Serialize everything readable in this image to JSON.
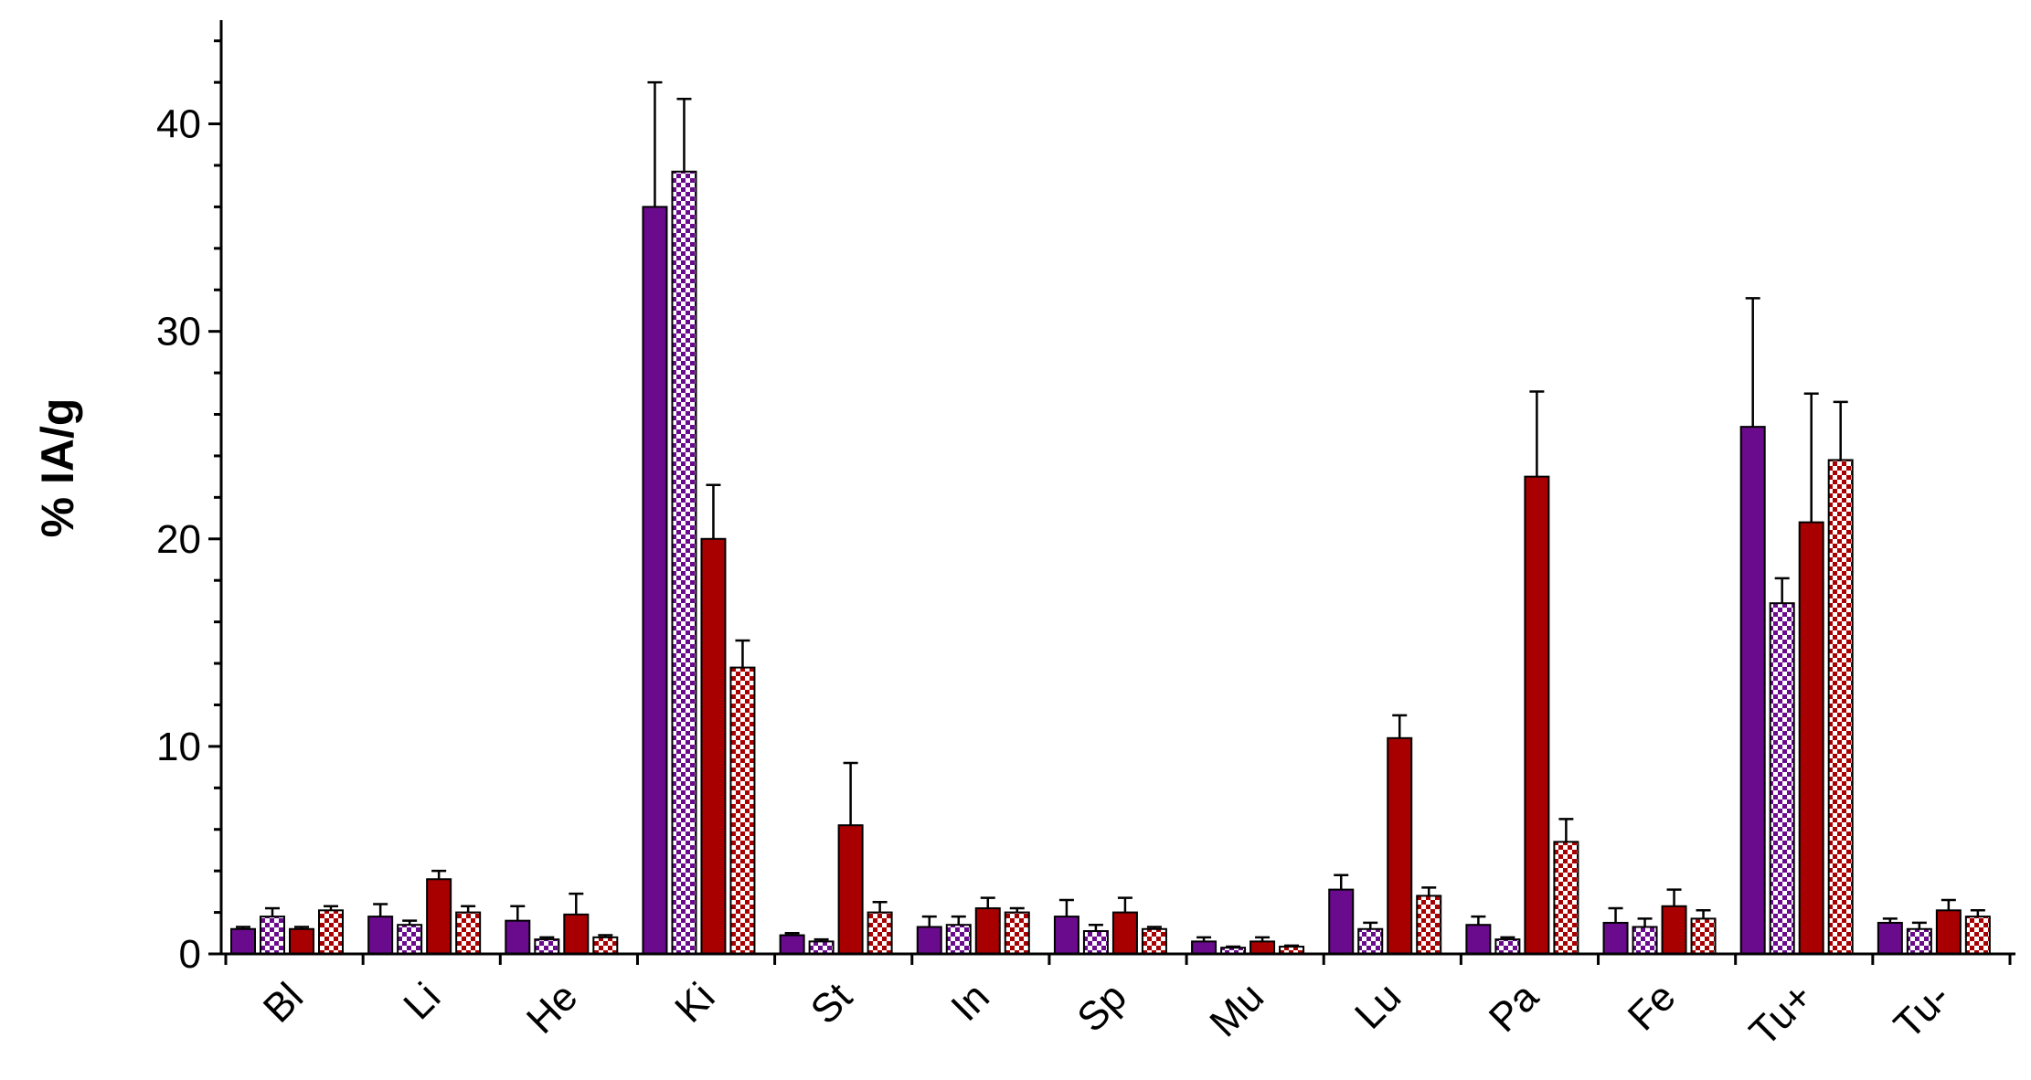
{
  "chart_data": {
    "type": "bar",
    "title": "",
    "xlabel": "",
    "ylabel": "% IA/g",
    "ylim": [
      0,
      45
    ],
    "yticks": [
      0,
      10,
      20,
      30,
      40
    ],
    "grid": false,
    "legend": "none",
    "categories": [
      "Bl",
      "Li",
      "He",
      "Ki",
      "St",
      "In",
      "Sp",
      "Mu",
      "Lu",
      "Pa",
      "Fe",
      "Tu+",
      "Tu-"
    ],
    "series": [
      {
        "color": "#6a0a8c",
        "pattern": "solid",
        "values": [
          1.2,
          1.8,
          1.6,
          36.0,
          0.9,
          1.3,
          1.8,
          0.6,
          3.1,
          1.4,
          1.5,
          25.4,
          1.5
        ],
        "errors": [
          0.1,
          0.6,
          0.7,
          6.0,
          0.1,
          0.5,
          0.8,
          0.2,
          0.7,
          0.4,
          0.7,
          6.2,
          0.2
        ]
      },
      {
        "color": "#6a0a8c",
        "pattern": "checkered",
        "values": [
          1.8,
          1.4,
          0.7,
          37.7,
          0.6,
          1.4,
          1.1,
          0.3,
          1.2,
          0.7,
          1.3,
          16.9,
          1.2
        ],
        "errors": [
          0.4,
          0.2,
          0.1,
          3.5,
          0.1,
          0.4,
          0.3,
          0.05,
          0.3,
          0.1,
          0.4,
          1.2,
          0.3
        ]
      },
      {
        "color": "#a80000",
        "pattern": "solid",
        "values": [
          1.2,
          3.6,
          1.9,
          20.0,
          6.2,
          2.2,
          2.0,
          0.6,
          10.4,
          23.0,
          2.3,
          20.8,
          2.1
        ],
        "errors": [
          0.1,
          0.4,
          1.0,
          2.6,
          3.0,
          0.5,
          0.7,
          0.2,
          1.1,
          4.1,
          0.8,
          6.2,
          0.5
        ]
      },
      {
        "color": "#a80000",
        "pattern": "checkered",
        "values": [
          2.1,
          2.0,
          0.8,
          13.8,
          2.0,
          2.0,
          1.2,
          0.35,
          2.8,
          5.4,
          1.7,
          23.8,
          1.8
        ],
        "errors": [
          0.2,
          0.3,
          0.1,
          1.3,
          0.5,
          0.2,
          0.1,
          0.05,
          0.4,
          1.1,
          0.4,
          2.8,
          0.3
        ]
      }
    ]
  }
}
